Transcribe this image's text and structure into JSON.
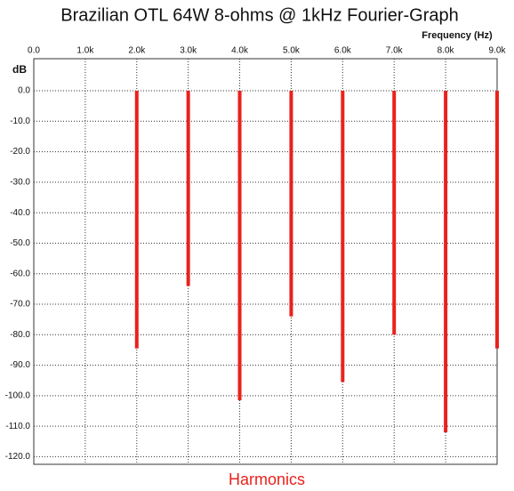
{
  "chart_data": {
    "type": "bar",
    "title": "Brazilian OTL 64W 8-ohms @ 1kHz Fourier-Graph",
    "x_label": "Frequency  (Hz)",
    "y_label": "dB",
    "bottom_label": "Harmonics",
    "x": [
      2000,
      3000,
      4000,
      5000,
      6000,
      7000,
      8000,
      9000
    ],
    "values": [
      -84.5,
      -64,
      -101.5,
      -74,
      -95.5,
      -80,
      -112,
      -84.5
    ],
    "color": "#e8221c",
    "xlim": [
      0,
      9000
    ],
    "xticks": [
      {
        "value": 0,
        "label": "0.0"
      },
      {
        "value": 1000,
        "label": "1.0k"
      },
      {
        "value": 2000,
        "label": "2.0k"
      },
      {
        "value": 3000,
        "label": "3.0k"
      },
      {
        "value": 4000,
        "label": "4.0k"
      },
      {
        "value": 5000,
        "label": "5.0k"
      },
      {
        "value": 6000,
        "label": "6.0k"
      },
      {
        "value": 7000,
        "label": "7.0k"
      },
      {
        "value": 8000,
        "label": "8.0k"
      },
      {
        "value": 9000,
        "label": "9.0k"
      }
    ],
    "ylim": [
      -122.5,
      10.5
    ],
    "yticks": [
      {
        "value": 0,
        "label": "0.0"
      },
      {
        "value": -10,
        "label": "-10.0"
      },
      {
        "value": -20,
        "label": "-20.0"
      },
      {
        "value": -30,
        "label": "-30.0"
      },
      {
        "value": -40,
        "label": "-40.0"
      },
      {
        "value": -50,
        "label": "-50.0"
      },
      {
        "value": -60,
        "label": "-60.0"
      },
      {
        "value": -70,
        "label": "-70.0"
      },
      {
        "value": -80,
        "label": "-80.0"
      },
      {
        "value": -90,
        "label": "-90.0"
      },
      {
        "value": -100,
        "label": "-100.0"
      },
      {
        "value": -110,
        "label": "-110.0"
      },
      {
        "value": -120,
        "label": "-120.0"
      }
    ],
    "grid": true
  }
}
